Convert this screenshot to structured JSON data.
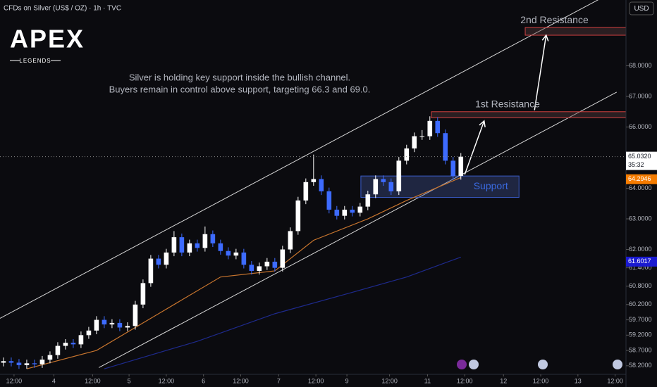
{
  "header": {
    "title": "CFDs on Silver (US$ / OZ) · 1h · TVC",
    "currency": "USD",
    "logo": "APEX",
    "logo_sub": "LEGENDS"
  },
  "chart_data": {
    "type": "candlestick",
    "annotation": [
      "Silver is holding key support inside the bullish channel.",
      "Buyers remain in control above support, targeting 66.3 and 69.0."
    ],
    "up_color": "#ffffff",
    "down_color": "#3d6bff",
    "open": [
      58.3,
      58.35,
      58.3,
      58.22,
      58.28,
      58.25,
      58.4,
      58.55,
      58.85,
      58.95,
      58.9,
      59.2,
      59.35,
      59.7,
      59.55,
      59.6,
      59.45,
      59.5,
      60.2,
      60.9,
      61.7,
      61.5,
      61.9,
      62.4,
      61.9,
      62.2,
      62.05,
      62.5,
      62.2,
      61.95,
      61.8,
      61.9,
      61.5,
      61.3,
      61.45,
      61.6,
      61.4,
      62.0,
      62.6,
      63.6,
      64.2,
      64.3,
      63.9,
      63.3,
      63.1,
      63.3,
      63.2,
      63.4,
      63.8,
      64.3,
      64.2,
      63.9,
      64.9,
      65.3,
      65.7,
      65.7,
      66.2,
      65.8,
      64.9,
      64.4
    ],
    "high": [
      58.47,
      58.47,
      58.42,
      58.4,
      58.4,
      58.52,
      58.67,
      58.97,
      59.07,
      59.07,
      59.32,
      59.47,
      59.82,
      59.82,
      59.72,
      59.72,
      59.62,
      60.32,
      61.02,
      61.82,
      61.82,
      62.02,
      62.6,
      62.52,
      62.32,
      62.32,
      62.75,
      62.62,
      62.32,
      62.07,
      62.02,
      62.02,
      61.62,
      61.57,
      61.72,
      61.72,
      62.12,
      62.72,
      63.72,
      64.32,
      65.1,
      64.42,
      64.02,
      63.42,
      63.42,
      63.42,
      63.52,
      63.92,
      64.42,
      64.42,
      64.32,
      65.02,
      65.42,
      65.82,
      65.9,
      66.35,
      66.32,
      65.92,
      65.02,
      65.15
    ],
    "low": [
      58.18,
      58.18,
      58.1,
      58.1,
      58.13,
      58.13,
      58.28,
      58.43,
      58.73,
      58.78,
      58.78,
      59.08,
      59.23,
      59.43,
      59.43,
      59.33,
      59.33,
      59.38,
      60.08,
      60.78,
      61.38,
      61.38,
      61.78,
      61.78,
      61.78,
      61.93,
      61.93,
      62.08,
      61.83,
      61.68,
      61.68,
      61.38,
      61.18,
      61.18,
      61.33,
      61.28,
      61.28,
      61.88,
      62.48,
      63.48,
      64.08,
      63.78,
      63.18,
      62.98,
      62.98,
      63.08,
      63.08,
      63.28,
      63.68,
      64.08,
      63.78,
      63.78,
      64.78,
      65.18,
      65.58,
      65.58,
      65.68,
      64.78,
      64.28,
      64.28
    ],
    "close": [
      58.35,
      58.3,
      58.22,
      58.28,
      58.25,
      58.4,
      58.55,
      58.85,
      58.95,
      58.9,
      59.2,
      59.35,
      59.7,
      59.55,
      59.6,
      59.45,
      59.5,
      60.2,
      60.9,
      61.7,
      61.5,
      61.9,
      62.4,
      61.9,
      62.2,
      62.05,
      62.5,
      62.2,
      61.95,
      61.8,
      61.9,
      61.5,
      61.3,
      61.45,
      61.6,
      61.4,
      62.0,
      62.6,
      63.6,
      64.2,
      64.3,
      63.9,
      63.3,
      63.1,
      63.3,
      63.2,
      63.4,
      63.8,
      64.3,
      64.2,
      63.9,
      64.9,
      65.3,
      65.7,
      65.7,
      66.2,
      65.8,
      64.9,
      64.4,
      65.03
    ],
    "series": [
      {
        "color": "#c8752e",
        "x": [
          3,
          12,
          20,
          28,
          35,
          40,
          47,
          52,
          59
        ],
        "values": [
          58.1,
          58.7,
          59.9,
          61.1,
          61.3,
          62.3,
          63.0,
          63.6,
          64.35
        ]
      },
      {
        "color": "#1e2a8c",
        "x": [
          13,
          25,
          35,
          45,
          52,
          59
        ],
        "values": [
          58.1,
          59.0,
          59.9,
          60.6,
          61.1,
          61.75
        ]
      }
    ],
    "channel": [
      {
        "x": [
          -0.45,
          80.3
        ],
        "y": [
          59.75,
          70.64
        ]
      },
      {
        "x": [
          12.3,
          79.1
        ],
        "y": [
          58.14,
          67.14
        ]
      }
    ],
    "zones": [
      {
        "label": "Support",
        "x": [
          46.1,
          66.5
        ],
        "y": [
          63.7,
          64.4
        ]
      },
      {
        "label": "1st Resistance",
        "x": [
          55.2,
          80.3
        ],
        "y": [
          66.3,
          66.5
        ]
      },
      {
        "label": "2nd Resistance",
        "x": [
          67.3,
          80.3
        ],
        "y": [
          69.0,
          69.25
        ]
      }
    ],
    "arrows": [
      {
        "x": [
          59.5,
          62.0
        ],
        "y": [
          64.45,
          66.2
        ]
      },
      {
        "x": [
          68.5,
          70.0
        ],
        "y": [
          66.55,
          69.0
        ]
      }
    ],
    "xlim": [
      -0.45,
      80.3
    ],
    "ylim": [
      57.92,
      70.15
    ],
    "xticks": [
      {
        "value": 1.36,
        "label": "12:00"
      },
      {
        "value": 6.5,
        "label": "4"
      },
      {
        "value": 11.5,
        "label": "12:00"
      },
      {
        "value": 16.2,
        "label": "5"
      },
      {
        "value": 21,
        "label": "12:00"
      },
      {
        "value": 25.8,
        "label": "6"
      },
      {
        "value": 30.6,
        "label": "12:00"
      },
      {
        "value": 35.5,
        "label": "7"
      },
      {
        "value": 40.3,
        "label": "12:00"
      },
      {
        "value": 44.3,
        "label": "9"
      },
      {
        "value": 49.8,
        "label": "12:00"
      },
      {
        "value": 54.7,
        "label": "11"
      },
      {
        "value": 59.5,
        "label": "12:00"
      },
      {
        "value": 64.5,
        "label": "12"
      },
      {
        "value": 69.3,
        "label": "12:00"
      },
      {
        "value": 74.1,
        "label": "13"
      },
      {
        "value": 78.9,
        "label": "12:00"
      }
    ],
    "yticks": [
      {
        "value": 68,
        "label": "68.0000"
      },
      {
        "value": 67,
        "label": "67.0000"
      },
      {
        "value": 66,
        "label": "66.0000"
      },
      {
        "value": 64,
        "label": "64.0000"
      },
      {
        "value": 63,
        "label": "63.0000"
      },
      {
        "value": 62,
        "label": "62.0000"
      },
      {
        "value": 61.4,
        "label": "61.4000"
      },
      {
        "value": 60.8,
        "label": "60.8000"
      },
      {
        "value": 60.2,
        "label": "60.2000"
      },
      {
        "value": 59.7,
        "label": "59.7000"
      },
      {
        "value": 59.2,
        "label": "59.2000"
      },
      {
        "value": 58.7,
        "label": "58.7000"
      },
      {
        "value": 58.2,
        "label": "58.2000"
      }
    ],
    "price_labels": [
      {
        "value": 65.032,
        "label": "65.0320",
        "sub": "35:32",
        "color": "#ffffff",
        "text_color": "#131722"
      },
      {
        "value": 64.2946,
        "label": "64.2946",
        "color": "#f57c00",
        "text_color": "#ffffff"
      },
      {
        "value": 61.6017,
        "label": "61.6017",
        "color": "#1a1ad0",
        "text_color": "#ffffff"
      }
    ]
  }
}
